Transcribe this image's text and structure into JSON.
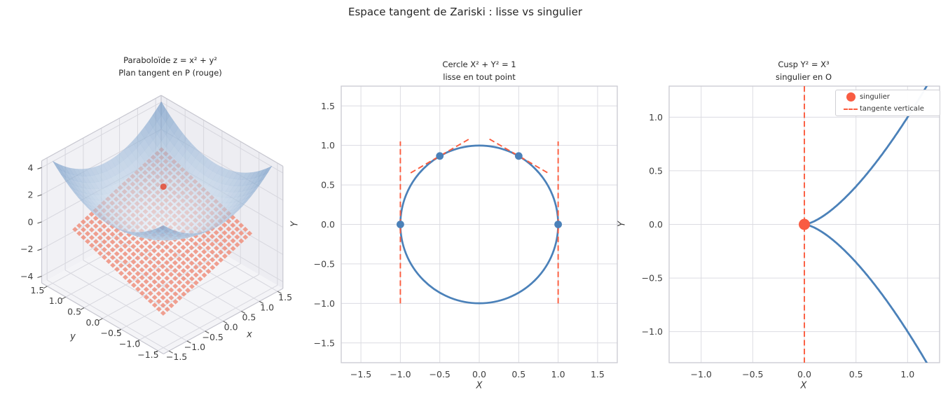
{
  "figure_title": "Espace tangent de Zariski : lisse vs singulier",
  "chart_data": [
    {
      "type": "surface3d",
      "title_lines": [
        "Paraboloïde z = x² + y²",
        "Plan tangent en P (rouge)"
      ],
      "xlabel": "x",
      "ylabel": "y",
      "x_ticks": [
        -1.5,
        -1.0,
        -0.5,
        0.0,
        0.5,
        1.0,
        1.5
      ],
      "y_ticks": [
        -1.5,
        -1.0,
        -0.5,
        0.0,
        0.5,
        1.0,
        1.5
      ],
      "z_ticks": [
        -4,
        -2,
        0,
        2,
        4
      ],
      "x_range": [
        -1.5,
        1.5
      ],
      "y_range": [
        -1.5,
        1.5
      ],
      "z_range": [
        -4.5,
        4.5
      ],
      "surface_equation": "z = x² + y²",
      "tangent_point": [
        0.5,
        0.5,
        0.5
      ],
      "tangent_plane_equation": "z = x + y − 0.5",
      "plane_range": [
        -1.25,
        1.25
      ],
      "surface_color_low": "#e3eef8",
      "surface_color_high": "#5f8cbe",
      "plane_color": "#ef8a76",
      "point_color": "#e2503b"
    },
    {
      "type": "line",
      "title_lines": [
        "Cercle X² + Y² = 1",
        "lisse en tout point"
      ],
      "xlabel": "X",
      "ylabel": "Y",
      "xlim": [
        -1.75,
        1.75
      ],
      "ylim": [
        -1.75,
        1.75
      ],
      "x_ticks": [
        -1.5,
        -1.0,
        -0.5,
        0.0,
        0.5,
        1.0,
        1.5
      ],
      "y_ticks": [
        -1.5,
        -1.0,
        -0.5,
        0.0,
        0.5,
        1.0,
        1.5
      ],
      "circle": {
        "center": [
          0,
          0
        ],
        "radius": 1
      },
      "marked_points": [
        [
          -1,
          0
        ],
        [
          1,
          0
        ],
        [
          -0.5,
          0.866
        ],
        [
          0.5,
          0.866
        ]
      ],
      "tangent_segments": [
        {
          "point": [
            -1,
            0
          ],
          "kind": "vertical",
          "y_span": [
            -1.0,
            1.05
          ]
        },
        {
          "point": [
            1,
            0
          ],
          "kind": "vertical",
          "y_span": [
            -1.0,
            1.05
          ]
        },
        {
          "point": [
            -0.5,
            0.866
          ],
          "kind": "sloped",
          "slope": 0.577,
          "x_span": [
            -0.87,
            -0.13
          ]
        },
        {
          "point": [
            0.5,
            0.866
          ],
          "kind": "sloped",
          "slope": -0.577,
          "x_span": [
            0.13,
            0.87
          ]
        }
      ],
      "curve_color": "#4b81b9",
      "tangent_color": "#fb5b3d",
      "grid": true
    },
    {
      "type": "line",
      "title_lines": [
        "Cusp Y² = X³",
        "singulier en O"
      ],
      "xlabel": "X",
      "ylabel": "Y",
      "xlim": [
        -1.31,
        1.31
      ],
      "ylim": [
        -1.29,
        1.29
      ],
      "x_ticks": [
        -1.0,
        -0.5,
        0.0,
        0.5,
        1.0
      ],
      "y_ticks": [
        -1.0,
        -0.5,
        0.0,
        0.5,
        1.0
      ],
      "curve_equation": "Y² = X³",
      "singular_point": [
        0,
        0
      ],
      "vertical_tangent_x": 0,
      "curve_color": "#4b81b9",
      "tangent_color": "#fb5b3d",
      "point_color": "#f95c42",
      "legend": [
        {
          "label": "singulier",
          "marker": "point"
        },
        {
          "label": "tangente verticale",
          "marker": "dashed-line"
        }
      ],
      "grid": true
    }
  ]
}
